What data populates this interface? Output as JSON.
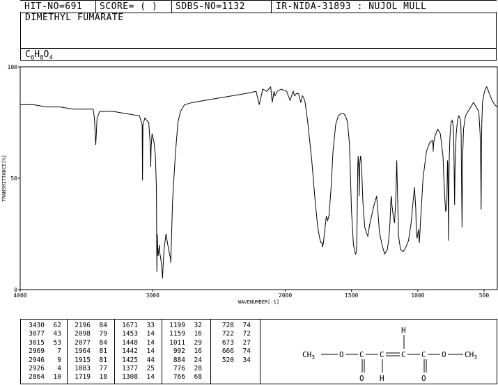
{
  "header": {
    "hit_no": "HIT-NO=691",
    "score": "SCORE=  (  )",
    "sdbs_no": "SDBS-NO=1132",
    "source": "IR-NIDA-31893 : NUJOL MULL",
    "compound_name": "DIMETHYL FUMARATE",
    "formula": {
      "c": "C",
      "c_n": "6",
      "h": "H",
      "h_n": "8",
      "o": "O",
      "o_n": "4"
    }
  },
  "chart_data": {
    "type": "line",
    "xlabel": "WAVENUMBER[-1]",
    "ylabel": "TRANSMITTANCE[%]",
    "xlim": [
      4000,
      400
    ],
    "ylim": [
      0,
      100
    ],
    "x_ticks": [
      4000,
      3000,
      2000,
      1500,
      1000,
      500
    ],
    "y_ticks": [
      0,
      50,
      100
    ],
    "series": [
      {
        "x": [
          4000,
          3900,
          3800,
          3700,
          3600,
          3500,
          3450,
          3440,
          3432,
          3430,
          3428,
          3420,
          3400,
          3300,
          3200,
          3100,
          3080,
          3077,
          3074,
          3060,
          3030,
          3018,
          3015,
          3012,
          3005,
          2990,
          2980,
          2972,
          2969,
          2966,
          2960,
          2950,
          2946,
          2942,
          2935,
          2929,
          2926,
          2922,
          2915,
          2900,
          2880,
          2866,
          2864,
          2860,
          2850,
          2830,
          2810,
          2790,
          2760,
          2700,
          2600,
          2500,
          2400,
          2300,
          2220,
          2196,
          2170,
          2140,
          2110,
          2098,
          2085,
          2077,
          2060,
          2030,
          1990,
          1964,
          1940,
          1930,
          1915,
          1900,
          1883,
          1870,
          1860,
          1850,
          1830,
          1800,
          1775,
          1755,
          1740,
          1730,
          1722,
          1719,
          1712,
          1705,
          1690,
          1680,
          1671,
          1665,
          1655,
          1640,
          1620,
          1600,
          1580,
          1560,
          1545,
          1530,
          1515,
          1500,
          1485,
          1470,
          1462,
          1458,
          1453,
          1450,
          1448,
          1443,
          1442,
          1438,
          1432,
          1425,
          1415,
          1400,
          1385,
          1377,
          1372,
          1360,
          1345,
          1330,
          1320,
          1310,
          1308,
          1300,
          1290,
          1270,
          1250,
          1230,
          1220,
          1210,
          1203,
          1199,
          1195,
          1185,
          1175,
          1165,
          1160,
          1159,
          1155,
          1150,
          1145,
          1130,
          1110,
          1090,
          1070,
          1050,
          1035,
          1025,
          1015,
          1011,
          1006,
          1000,
          995,
          992,
          988,
          980,
          960,
          935,
          910,
          890,
          885,
          884,
          880,
          870,
          850,
          830,
          810,
          800,
          790,
          781,
          778,
          776,
          773,
          770,
          768,
          766,
          763,
          758,
          750,
          740,
          732,
          728,
          725,
          722,
          719,
          710,
          700,
          690,
          681,
          676,
          673,
          670,
          666,
          662,
          655,
          640,
          620,
          600,
          580,
          560,
          540,
          530,
          525,
          522,
          520,
          517,
          512,
          500,
          490,
          480,
          460,
          440,
          420,
          400
        ],
        "y": [
          83,
          83,
          82,
          82,
          81,
          81,
          81,
          77,
          67,
          65,
          67,
          77,
          80,
          80,
          79,
          78,
          74,
          49,
          74,
          77,
          75,
          64,
          55,
          64,
          70,
          66,
          60,
          45,
          8,
          25,
          15,
          20,
          16,
          15,
          12,
          8,
          5,
          10,
          18,
          25,
          18,
          14,
          12,
          20,
          40,
          60,
          75,
          80,
          83,
          84,
          85,
          86,
          87,
          88,
          89,
          83,
          90,
          89,
          91,
          84,
          89,
          87,
          89,
          90,
          89,
          85,
          89,
          87,
          88,
          88,
          84,
          87,
          86,
          84,
          75,
          58,
          40,
          28,
          23,
          21,
          21,
          19,
          21,
          25,
          33,
          31,
          33,
          37,
          45,
          62,
          74,
          78,
          79,
          79,
          78,
          75,
          65,
          35,
          20,
          16,
          17,
          30,
          55,
          60,
          58,
          50,
          42,
          56,
          60,
          57,
          40,
          28,
          25,
          24,
          26,
          30,
          34,
          38,
          40,
          42,
          40,
          34,
          26,
          20,
          16,
          18,
          22,
          30,
          40,
          42,
          38,
          33,
          30,
          42,
          55,
          58,
          49,
          36,
          24,
          18,
          17,
          19,
          22,
          30,
          40,
          46,
          36,
          26,
          23,
          25,
          27,
          24,
          21,
          30,
          50,
          62,
          66,
          67,
          65,
          62,
          66,
          69,
          72,
          70,
          60,
          45,
          35,
          37,
          50,
          58,
          56,
          40,
          22,
          40,
          58,
          68,
          75,
          76,
          73,
          65,
          50,
          38,
          55,
          70,
          76,
          78,
          77,
          75,
          69,
          50,
          28,
          58,
          72,
          78,
          80,
          82,
          84,
          82,
          80,
          70,
          56,
          36,
          60,
          74,
          84,
          88,
          90,
          91,
          88,
          85,
          83,
          82
        ]
      }
    ]
  },
  "peaks": [
    [
      [
        "3430",
        "62"
      ],
      [
        "3077",
        "43"
      ],
      [
        "3015",
        "53"
      ],
      [
        "2969",
        "7"
      ],
      [
        "2946",
        "9"
      ],
      [
        "2926",
        "4"
      ],
      [
        "2864",
        "10"
      ]
    ],
    [
      [
        "2196",
        "84"
      ],
      [
        "2098",
        "79"
      ],
      [
        "2077",
        "84"
      ],
      [
        "1964",
        "81"
      ],
      [
        "1915",
        "81"
      ],
      [
        "1883",
        "77"
      ],
      [
        "1719",
        "18"
      ]
    ],
    [
      [
        "1671",
        "33"
      ],
      [
        "1453",
        "14"
      ],
      [
        "1448",
        "14"
      ],
      [
        "1442",
        "14"
      ],
      [
        "1425",
        "44"
      ],
      [
        "1377",
        "25"
      ],
      [
        "1308",
        "14"
      ]
    ],
    [
      [
        "1199",
        "32"
      ],
      [
        "1159",
        "16"
      ],
      [
        "1011",
        "29"
      ],
      [
        "992",
        "16"
      ],
      [
        "884",
        "24"
      ],
      [
        "776",
        "28"
      ],
      [
        "766",
        "68"
      ]
    ],
    [
      [
        "728",
        "74"
      ],
      [
        "722",
        "72"
      ],
      [
        "673",
        "27"
      ],
      [
        "666",
        "74"
      ],
      [
        "520",
        "34"
      ]
    ]
  ],
  "structure": {
    "ch3_left": "CH3",
    "o_left": "O",
    "c1": "C",
    "c2": "C",
    "c3": "C",
    "c4": "C",
    "o_right": "O",
    "ch3_right": "CH3",
    "o_dbl1": "O",
    "o_dbl2": "O",
    "h_top": "H",
    "h_bottom": "H"
  }
}
